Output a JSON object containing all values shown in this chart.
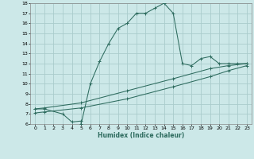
{
  "xlabel": "Humidex (Indice chaleur)",
  "ylabel": "",
  "bg_color": "#cce8e8",
  "grid_color": "#aacccc",
  "line_color": "#2d6b5e",
  "xlim": [
    -0.5,
    23.5
  ],
  "ylim": [
    6,
    18
  ],
  "xticks": [
    0,
    1,
    2,
    3,
    4,
    5,
    6,
    7,
    8,
    9,
    10,
    11,
    12,
    13,
    14,
    15,
    16,
    17,
    18,
    19,
    20,
    21,
    22,
    23
  ],
  "yticks": [
    6,
    7,
    8,
    9,
    10,
    11,
    12,
    13,
    14,
    15,
    16,
    17,
    18
  ],
  "curve1_x": [
    0,
    1,
    3,
    4,
    5,
    5,
    6,
    7,
    8,
    9,
    10,
    11,
    12,
    13,
    14,
    15,
    16,
    17,
    18,
    19,
    20,
    21,
    22,
    23
  ],
  "curve1_y": [
    7.5,
    7.5,
    7.0,
    6.2,
    6.3,
    6.0,
    10.0,
    12.2,
    14.0,
    15.5,
    16.0,
    17.0,
    17.0,
    17.5,
    18.0,
    17.0,
    12.0,
    11.8,
    12.5,
    12.7,
    12.0,
    12.0,
    12.0,
    12.0
  ],
  "curve2_x": [
    0,
    1,
    5,
    10,
    15,
    19,
    21,
    23
  ],
  "curve2_y": [
    7.5,
    7.6,
    8.1,
    9.3,
    10.5,
    11.5,
    11.8,
    12.0
  ],
  "curve3_x": [
    0,
    1,
    5,
    10,
    15,
    19,
    21,
    23
  ],
  "curve3_y": [
    7.1,
    7.2,
    7.6,
    8.5,
    9.7,
    10.7,
    11.3,
    11.8
  ]
}
